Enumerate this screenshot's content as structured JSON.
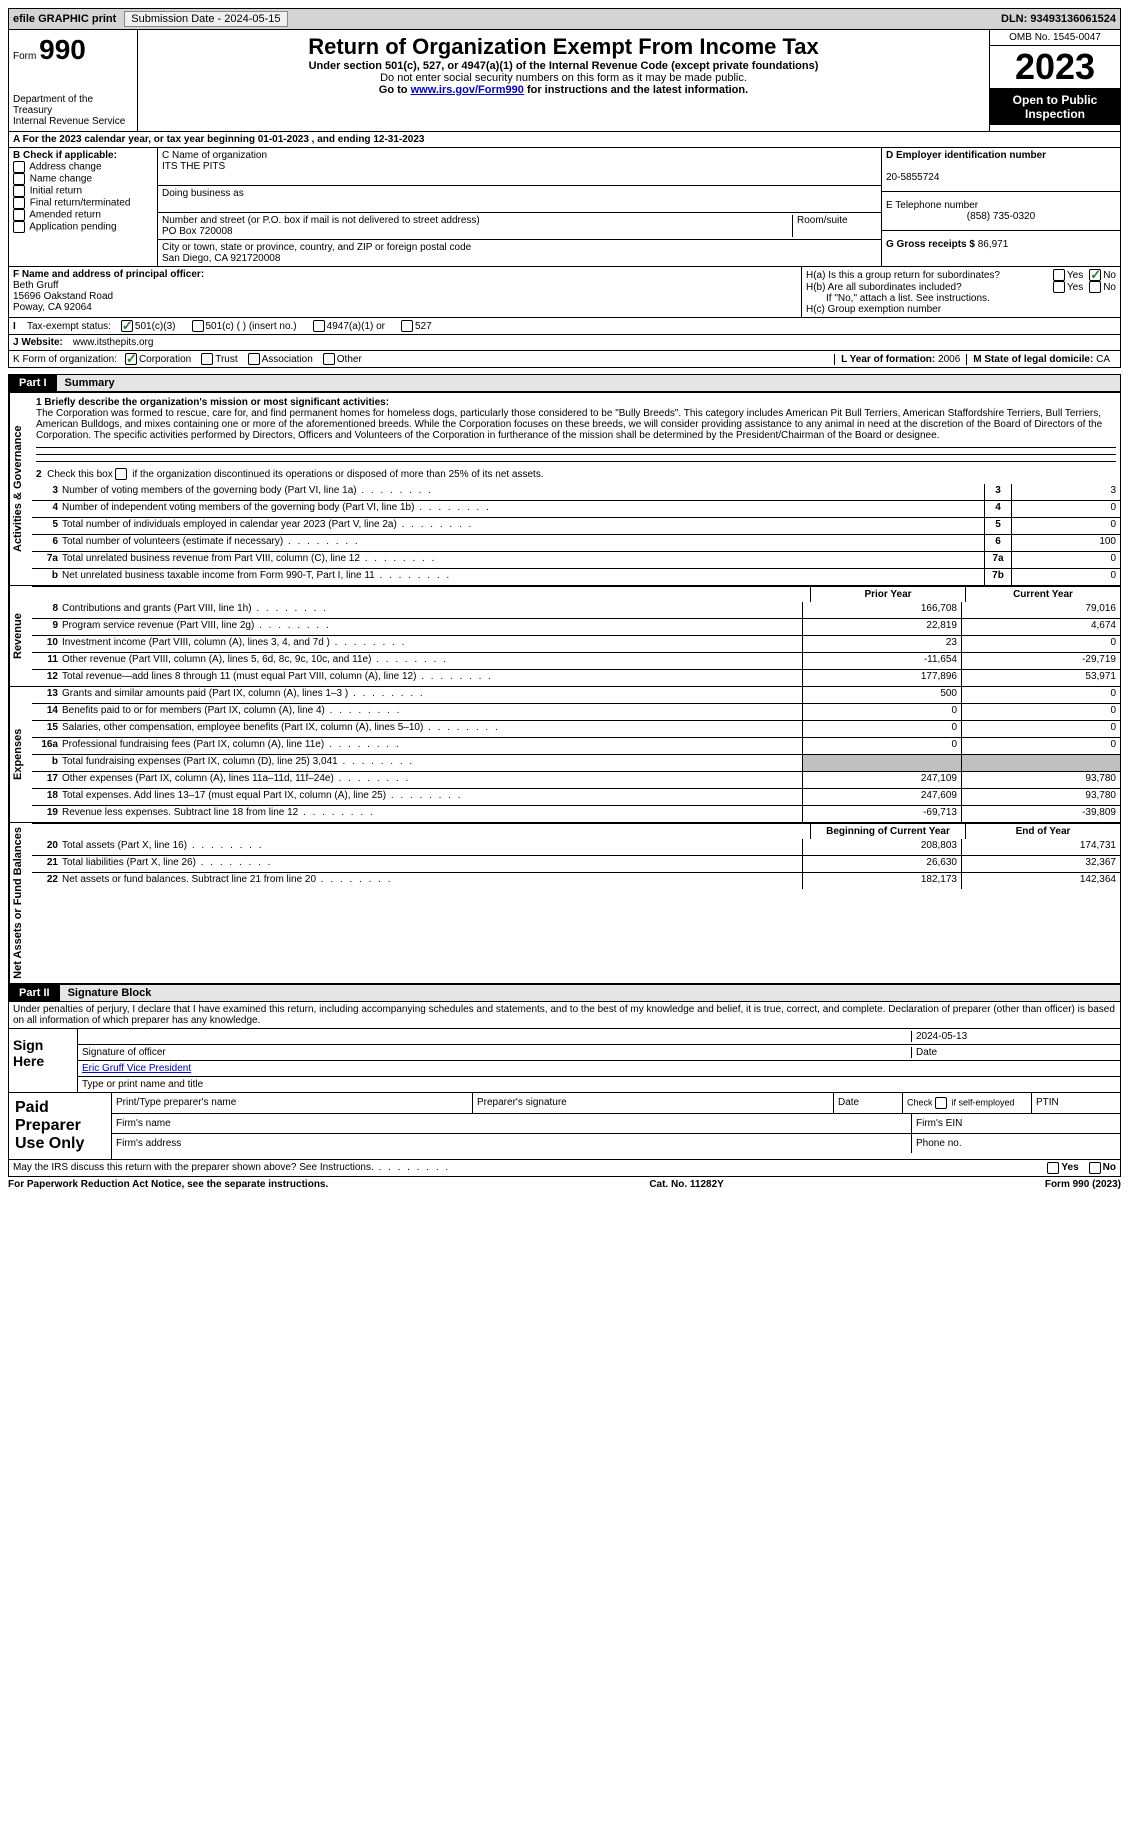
{
  "topbar": {
    "efile": "efile GRAPHIC print",
    "submission": "Submission Date - 2024-05-15",
    "dln": "DLN: 93493136061524"
  },
  "header": {
    "form": "Form",
    "form_no": "990",
    "dept": "Department of the Treasury\nInternal Revenue Service",
    "title": "Return of Organization Exempt From Income Tax",
    "sub1": "Under section 501(c), 527, or 4947(a)(1) of the Internal Revenue Code (except private foundations)",
    "sub2": "Do not enter social security numbers on this form as it may be made public.",
    "sub3_pre": "Go to ",
    "sub3_link": "www.irs.gov/Form990",
    "sub3_post": " for instructions and the latest information.",
    "omb": "OMB No. 1545-0047",
    "year": "2023",
    "open": "Open to Public Inspection"
  },
  "section_a": "A For the 2023 calendar year, or tax year beginning 01-01-2023   , and ending 12-31-2023",
  "block_b": {
    "label": "B Check if applicable:",
    "opts": [
      "Address change",
      "Name change",
      "Initial return",
      "Final return/terminated",
      "Amended return",
      "Application pending"
    ]
  },
  "block_c": {
    "label": "C Name of organization",
    "name": "ITS THE PITS",
    "dba_label": "Doing business as",
    "addr_label": "Number and street (or P.O. box if mail is not delivered to street address)",
    "addr": "PO Box 720008",
    "room": "Room/suite",
    "city_label": "City or town, state or province, country, and ZIP or foreign postal code",
    "city": "San Diego, CA  921720008"
  },
  "block_d": {
    "label": "D Employer identification number",
    "ein": "20-5855724"
  },
  "block_e": {
    "label": "E Telephone number",
    "phone": "(858) 735-0320"
  },
  "block_g": {
    "label": "G Gross receipts $",
    "val": "86,971"
  },
  "block_f": {
    "label": "F Name and address of principal officer:",
    "name": "Beth Gruff",
    "addr1": "15696 Oakstand Road",
    "addr2": "Poway, CA  92064"
  },
  "block_h": {
    "ha": "H(a)  Is this a group return for subordinates?",
    "hb": "H(b)  Are all subordinates included?",
    "hb_note": "If \"No,\" attach a list. See instructions.",
    "hc": "H(c)  Group exemption number",
    "yes": "Yes",
    "no": "No"
  },
  "tax_status": {
    "label": "Tax-exempt status:",
    "o1": "501(c)(3)",
    "o2": "501(c) (  ) (insert no.)",
    "o3": "4947(a)(1) or",
    "o4": "527"
  },
  "website": {
    "label": "J   Website:",
    "val": "www.itsthepits.org"
  },
  "k_org": {
    "label": "K Form of organization:",
    "o1": "Corporation",
    "o2": "Trust",
    "o3": "Association",
    "o4": "Other",
    "l_label": "L Year of formation:",
    "l_val": "2006",
    "m_label": "M State of legal domicile:",
    "m_val": "CA"
  },
  "part1": {
    "part": "Part I",
    "title": "Summary",
    "line1_label": "1  Briefly describe the organization's mission or most significant activities:",
    "mission": "The Corporation was formed to rescue, care for, and find permanent homes for homeless dogs, particularly those considered to be \"Bully Breeds\". This category includes American Pit Bull Terriers, American Staffordshire Terriers, Bull Terriers, American Bulldogs, and mixes containing one or more of the aforementioned breeds. While the Corporation focuses on these breeds, we will consider providing assistance to any animal in need at the discretion of the Board of Directors of the Corporation. The specific activities performed by Directors, Officers and Volunteers of the Corporation in furtherance of the mission shall be determined by the President/Chairman of the Board or designee.",
    "line2": "2   Check this box      if the organization discontinued its operations or disposed of more than 25% of its net assets.",
    "gov_label": "Activities & Governance",
    "rev_label": "Revenue",
    "exp_label": "Expenses",
    "net_label": "Net Assets or Fund Balances",
    "lines_gov": [
      {
        "n": "3",
        "t": "Number of voting members of the governing body (Part VI, line 1a)",
        "c": "3",
        "v": "3"
      },
      {
        "n": "4",
        "t": "Number of independent voting members of the governing body (Part VI, line 1b)",
        "c": "4",
        "v": "0"
      },
      {
        "n": "5",
        "t": "Total number of individuals employed in calendar year 2023 (Part V, line 2a)",
        "c": "5",
        "v": "0"
      },
      {
        "n": "6",
        "t": "Total number of volunteers (estimate if necessary)",
        "c": "6",
        "v": "100"
      },
      {
        "n": "7a",
        "t": "Total unrelated business revenue from Part VIII, column (C), line 12",
        "c": "7a",
        "v": "0"
      },
      {
        "n": "b",
        "t": "Net unrelated business taxable income from Form 990-T, Part I, line 11",
        "c": "7b",
        "v": "0"
      }
    ],
    "prior": "Prior Year",
    "current": "Current Year",
    "lines_rev": [
      {
        "n": "8",
        "t": "Contributions and grants (Part VIII, line 1h)",
        "p": "166,708",
        "c": "79,016"
      },
      {
        "n": "9",
        "t": "Program service revenue (Part VIII, line 2g)",
        "p": "22,819",
        "c": "4,674"
      },
      {
        "n": "10",
        "t": "Investment income (Part VIII, column (A), lines 3, 4, and 7d )",
        "p": "23",
        "c": "0"
      },
      {
        "n": "11",
        "t": "Other revenue (Part VIII, column (A), lines 5, 6d, 8c, 9c, 10c, and 11e)",
        "p": "-11,654",
        "c": "-29,719"
      },
      {
        "n": "12",
        "t": "Total revenue—add lines 8 through 11 (must equal Part VIII, column (A), line 12)",
        "p": "177,896",
        "c": "53,971"
      }
    ],
    "lines_exp": [
      {
        "n": "13",
        "t": "Grants and similar amounts paid (Part IX, column (A), lines 1–3 )",
        "p": "500",
        "c": "0"
      },
      {
        "n": "14",
        "t": "Benefits paid to or for members (Part IX, column (A), line 4)",
        "p": "0",
        "c": "0"
      },
      {
        "n": "15",
        "t": "Salaries, other compensation, employee benefits (Part IX, column (A), lines 5–10)",
        "p": "0",
        "c": "0"
      },
      {
        "n": "16a",
        "t": "Professional fundraising fees (Part IX, column (A), line 11e)",
        "p": "0",
        "c": "0"
      },
      {
        "n": "b",
        "t": "Total fundraising expenses (Part IX, column (D), line 25) 3,041",
        "p": "",
        "c": "",
        "gray": true
      },
      {
        "n": "17",
        "t": "Other expenses (Part IX, column (A), lines 11a–11d, 11f–24e)",
        "p": "247,109",
        "c": "93,780"
      },
      {
        "n": "18",
        "t": "Total expenses. Add lines 13–17 (must equal Part IX, column (A), line 25)",
        "p": "247,609",
        "c": "93,780"
      },
      {
        "n": "19",
        "t": "Revenue less expenses. Subtract line 18 from line 12",
        "p": "-69,713",
        "c": "-39,809"
      }
    ],
    "begin": "Beginning of Current Year",
    "end": "End of Year",
    "lines_net": [
      {
        "n": "20",
        "t": "Total assets (Part X, line 16)",
        "p": "208,803",
        "c": "174,731"
      },
      {
        "n": "21",
        "t": "Total liabilities (Part X, line 26)",
        "p": "26,630",
        "c": "32,367"
      },
      {
        "n": "22",
        "t": "Net assets or fund balances. Subtract line 21 from line 20",
        "p": "182,173",
        "c": "142,364"
      }
    ]
  },
  "part2": {
    "part": "Part II",
    "title": "Signature Block",
    "decl": "Under penalties of perjury, I declare that I have examined this return, including accompanying schedules and statements, and to the best of my knowledge and belief, it is true, correct, and complete. Declaration of preparer (other than officer) is based on all information of which preparer has any knowledge.",
    "sign_here": "Sign Here",
    "sig_officer": "Signature of officer",
    "sig_date_val": "2024-05-13",
    "sig_date": "Date",
    "officer_name": "Eric Gruff  Vice President",
    "type_name": "Type or print name and title",
    "paid": "Paid Preparer Use Only",
    "prep_name": "Print/Type preparer's name",
    "prep_sig": "Preparer's signature",
    "date": "Date",
    "check_self": "Check       if self-employed",
    "ptin": "PTIN",
    "firm_name": "Firm's name",
    "firm_ein": "Firm's EIN",
    "firm_addr": "Firm's address",
    "phone": "Phone no.",
    "discuss": "May the IRS discuss this return with the preparer shown above? See Instructions.",
    "yes": "Yes",
    "no": "No"
  },
  "footer": {
    "left": "For Paperwork Reduction Act Notice, see the separate instructions.",
    "center": "Cat. No. 11282Y",
    "right": "Form 990 (2023)"
  }
}
